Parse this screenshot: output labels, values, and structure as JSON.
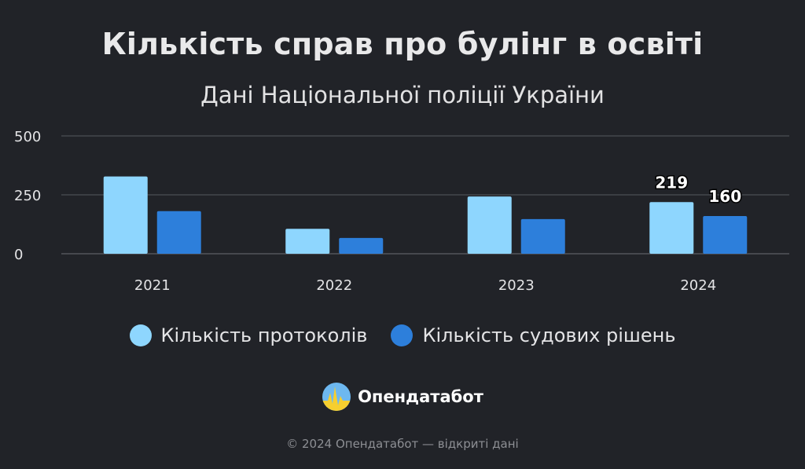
{
  "title": "Кількість справ про булінг в освіті",
  "subtitle": "Дані Національної поліції України",
  "colors": {
    "background": "#212328",
    "series_light": "#8ed6fe",
    "series_dark": "#2d7fdb",
    "grid": "#55585e",
    "text": "#e4e4e6"
  },
  "chart_data": {
    "type": "bar",
    "categories": [
      "2021",
      "2022",
      "2023",
      "2024"
    ],
    "series": [
      {
        "name": "Кількість протоколів",
        "values": [
          328,
          106,
          243,
          219
        ]
      },
      {
        "name": "Кількість судових рішень",
        "values": [
          181,
          67,
          147,
          160
        ]
      }
    ],
    "y_ticks": [
      0,
      250,
      500
    ],
    "ylim": [
      0,
      500
    ],
    "data_labels": [
      {
        "category": "2024",
        "series": 0,
        "text": "219"
      },
      {
        "category": "2024",
        "series": 1,
        "text": "160"
      }
    ],
    "grid": true,
    "legend_position": "bottom",
    "xlabel": "",
    "ylabel": ""
  },
  "legend": {
    "items": [
      {
        "label": "Кількість протоколів",
        "color": "#8ed6fe"
      },
      {
        "label": "Кількість судових рішень",
        "color": "#2d7fdb"
      }
    ]
  },
  "brand": {
    "name": "Опендатабот",
    "icon": "opendatabot-logo-icon"
  },
  "footer": {
    "text": "© 2024 Опендатабот — відкриті дані"
  }
}
